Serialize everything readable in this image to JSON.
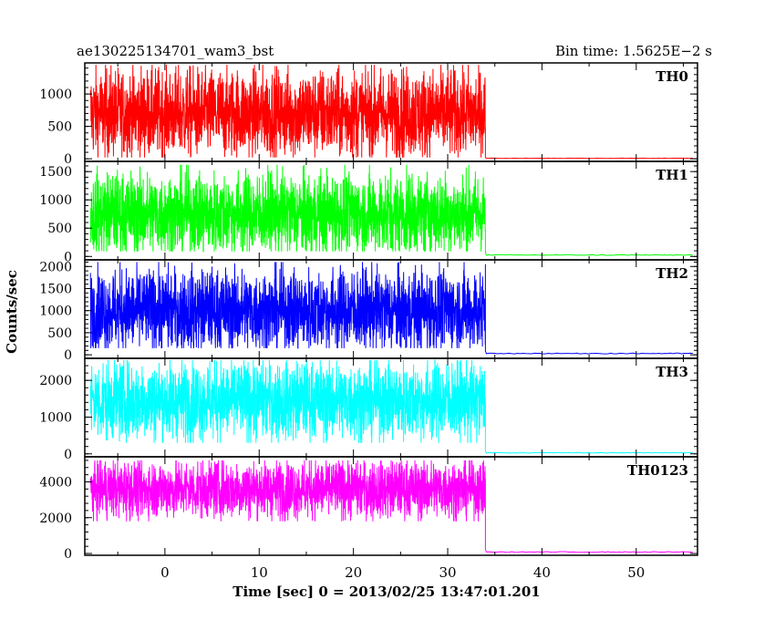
{
  "chart_data": {
    "type": "line",
    "title_left": "ae130225134701_wam3_bst",
    "title_right": "Bin time: 1.5625E−2 s",
    "xlabel": "Time [sec] 0 = 2013/02/25 13:47:01.201",
    "ylabel": "Counts/sec",
    "xlim": [
      -8.5,
      56.5
    ],
    "x_ticks": [
      0,
      10,
      20,
      30,
      40,
      50
    ],
    "x_tick_labels": [
      "0",
      "10",
      "20",
      "30",
      "40",
      "50"
    ],
    "burst_end": 34.0,
    "panels": [
      {
        "name": "TH0",
        "color": "#ff0000",
        "ylim": [
          -40,
          1480
        ],
        "yticks": [
          0,
          500,
          1000
        ],
        "ytick_labels": [
          "0",
          "500",
          "1000"
        ],
        "level_before": 700,
        "range_before": [
          20,
          1450
        ],
        "level_after": 8
      },
      {
        "name": "TH1",
        "color": "#00ff00",
        "ylim": [
          -60,
          1680
        ],
        "yticks": [
          0,
          500,
          1000,
          1500
        ],
        "ytick_labels": [
          "0",
          "500",
          "1000",
          "1500"
        ],
        "level_before": 750,
        "range_before": [
          90,
          1620
        ],
        "level_after": 25
      },
      {
        "name": "TH2",
        "color": "#0000ff",
        "ylim": [
          -80,
          2150
        ],
        "yticks": [
          0,
          500,
          1000,
          1500,
          2000
        ],
        "ytick_labels": [
          "0",
          "500",
          "1000",
          "1500",
          "2000"
        ],
        "level_before": 1000,
        "range_before": [
          150,
          2100
        ],
        "level_after": 30
      },
      {
        "name": "TH3",
        "color": "#00ffff",
        "ylim": [
          -80,
          2600
        ],
        "yticks": [
          0,
          1000,
          2000
        ],
        "ytick_labels": [
          "0",
          "1000",
          "2000"
        ],
        "level_before": 1450,
        "range_before": [
          300,
          2550
        ],
        "level_after": 30
      },
      {
        "name": "TH0123",
        "color": "#ff00ff",
        "ylim": [
          -100,
          5400
        ],
        "yticks": [
          0,
          2000,
          4000
        ],
        "ytick_labels": [
          "0",
          "2000",
          "4000"
        ],
        "level_before": 3600,
        "range_before": [
          1800,
          5200
        ],
        "level_after": 80
      }
    ]
  }
}
